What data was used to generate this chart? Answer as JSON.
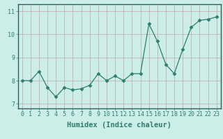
{
  "x": [
    0,
    1,
    2,
    3,
    4,
    5,
    6,
    7,
    8,
    9,
    10,
    11,
    12,
    13,
    14,
    15,
    16,
    17,
    18,
    19,
    20,
    21,
    22,
    23
  ],
  "y": [
    8.0,
    8.0,
    8.4,
    7.7,
    7.3,
    7.7,
    7.6,
    7.65,
    7.8,
    8.3,
    8.0,
    8.2,
    8.0,
    8.3,
    8.3,
    10.45,
    9.7,
    8.7,
    8.3,
    9.35,
    10.3,
    10.6,
    10.65,
    10.75
  ],
  "line_color": "#2e7d6e",
  "marker": "D",
  "marker_size": 2.5,
  "bg_color": "#cceee8",
  "grid_color": "#c4a8a8",
  "xlabel": "Humidex (Indice chaleur)",
  "ylim": [
    6.8,
    11.3
  ],
  "xlim": [
    -0.5,
    23.5
  ],
  "yticks": [
    7,
    8,
    9,
    10,
    11
  ],
  "xticks": [
    0,
    1,
    2,
    3,
    4,
    5,
    6,
    7,
    8,
    9,
    10,
    11,
    12,
    13,
    14,
    15,
    16,
    17,
    18,
    19,
    20,
    21,
    22,
    23
  ],
  "tick_color": "#2e7d6e",
  "spine_color": "#2e6060",
  "label_fontsize": 6,
  "xlabel_fontsize": 7.5
}
